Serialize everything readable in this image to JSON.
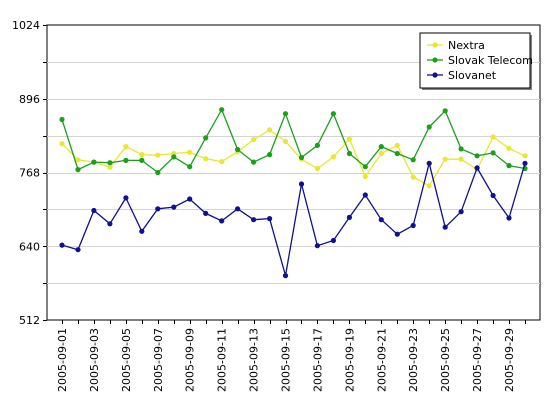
{
  "chart_data": {
    "type": "line",
    "title": "",
    "xlabel": "",
    "ylabel": "",
    "ylim": [
      512,
      1024
    ],
    "yticks": [
      "512",
      "640",
      "768",
      "896",
      "1024"
    ],
    "grid": true,
    "legend_position": "top-right",
    "x": [
      "2005-09-01",
      "2005-09-02",
      "2005-09-03",
      "2005-09-04",
      "2005-09-05",
      "2005-09-06",
      "2005-09-07",
      "2005-09-08",
      "2005-09-09",
      "2005-09-10",
      "2005-09-11",
      "2005-09-12",
      "2005-09-13",
      "2005-09-14",
      "2005-09-15",
      "2005-09-16",
      "2005-09-17",
      "2005-09-18",
      "2005-09-19",
      "2005-09-20",
      "2005-09-21",
      "2005-09-22",
      "2005-09-23",
      "2005-09-24",
      "2005-09-25",
      "2005-09-26",
      "2005-09-27",
      "2005-09-28",
      "2005-09-29",
      "2005-09-30"
    ],
    "xtick_labels": [
      "2005-09-01",
      "2005-09-03",
      "2005-09-05",
      "2005-09-07",
      "2005-09-09",
      "2005-09-11",
      "2005-09-13",
      "2005-09-15",
      "2005-09-17",
      "2005-09-19",
      "2005-09-21",
      "2005-09-23",
      "2005-09-25",
      "2005-09-27",
      "2005-09-29"
    ],
    "series": [
      {
        "name": "Nextra",
        "color": "#e8e830",
        "values": [
          818,
          790,
          786,
          777,
          813,
          799,
          798,
          801,
          803,
          792,
          787,
          804,
          825,
          842,
          822,
          791,
          775,
          795,
          826,
          761,
          801,
          815,
          760,
          745,
          791,
          791,
          773,
          830,
          810,
          797
        ]
      },
      {
        "name": "Slovak Telecom",
        "color": "#1ca01c",
        "values": [
          860,
          773,
          786,
          785,
          789,
          789,
          768,
          795,
          778,
          828,
          877,
          808,
          786,
          799,
          870,
          794,
          815,
          870,
          801,
          778,
          813,
          801,
          790,
          847,
          875,
          809,
          797,
          802,
          780,
          775
        ]
      },
      {
        "name": "Slovanet",
        "color": "#101090",
        "values": [
          642,
          634,
          702,
          679,
          724,
          666,
          705,
          708,
          722,
          697,
          684,
          705,
          686,
          688,
          589,
          748,
          641,
          650,
          690,
          729,
          686,
          661,
          676,
          784,
          673,
          700,
          776,
          728,
          689,
          784
        ]
      }
    ]
  }
}
